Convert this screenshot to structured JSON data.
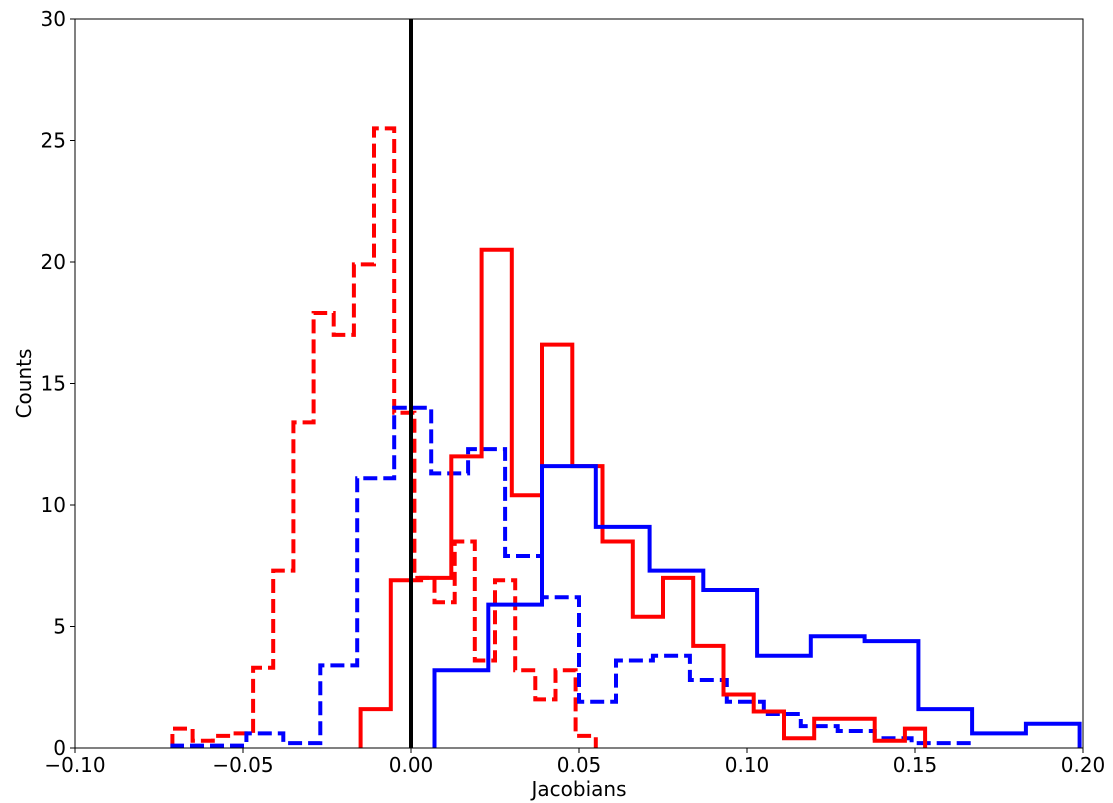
{
  "chart_data": {
    "type": "histogram",
    "xlabel": "Jacobians",
    "ylabel": "Counts",
    "xlim": [
      -0.1,
      0.2
    ],
    "ylim": [
      0,
      30
    ],
    "xticks": [
      -0.1,
      -0.05,
      0.0,
      0.05,
      0.1,
      0.15,
      0.2
    ],
    "xtick_labels": [
      "−0.10",
      "−0.05",
      "0.00",
      "0.05",
      "0.10",
      "0.15",
      "0.20"
    ],
    "yticks": [
      0,
      5,
      10,
      15,
      20,
      25,
      30
    ],
    "ytick_labels": [
      "0",
      "5",
      "10",
      "15",
      "20",
      "25",
      "30"
    ],
    "grid": false,
    "reference_line": {
      "x": 0.0,
      "color": "#000000"
    },
    "series": [
      {
        "color": "#ff0000",
        "style": "dashed",
        "edges": [
          -0.071,
          -0.065,
          -0.059,
          -0.053,
          -0.047,
          -0.041,
          -0.035,
          -0.029,
          -0.023,
          -0.017,
          -0.011,
          -0.005,
          0.001,
          0.007,
          0.013,
          0.019,
          0.025,
          0.031,
          0.037,
          0.043,
          0.049,
          0.055
        ],
        "counts": [
          0.8,
          0.3,
          0.5,
          0.6,
          3.3,
          7.3,
          13.4,
          17.9,
          17.0,
          19.9,
          25.5,
          13.8,
          7.0,
          6.0,
          8.5,
          3.6,
          6.9,
          3.2,
          2.0,
          3.2,
          0.5
        ]
      },
      {
        "color": "#0000ff",
        "style": "dashed",
        "edges": [
          -0.071,
          -0.06,
          -0.049,
          -0.038,
          -0.027,
          -0.016,
          -0.005,
          0.006,
          0.017,
          0.028,
          0.039,
          0.05,
          0.061,
          0.072,
          0.083,
          0.094,
          0.105,
          0.116,
          0.127,
          0.138,
          0.149,
          0.167
        ],
        "counts": [
          0.1,
          0.1,
          0.6,
          0.2,
          3.4,
          11.1,
          14.0,
          11.3,
          12.3,
          7.9,
          6.2,
          1.9,
          3.6,
          3.8,
          2.8,
          1.9,
          1.4,
          0.9,
          0.7,
          0.4,
          0.2
        ]
      },
      {
        "color": "#ff0000",
        "style": "solid",
        "edges": [
          -0.015,
          -0.006,
          0.003,
          0.012,
          0.021,
          0.03,
          0.039,
          0.048,
          0.057,
          0.066,
          0.075,
          0.084,
          0.093,
          0.102,
          0.111,
          0.12,
          0.129,
          0.138,
          0.147,
          0.153
        ],
        "counts": [
          1.6,
          6.9,
          7.0,
          12.0,
          20.5,
          10.4,
          16.6,
          11.6,
          8.5,
          5.4,
          7.0,
          4.2,
          2.2,
          1.5,
          0.4,
          1.2,
          1.2,
          0.3,
          0.8
        ]
      },
      {
        "color": "#0000ff",
        "style": "solid",
        "edges": [
          0.007,
          0.023,
          0.039,
          0.055,
          0.071,
          0.087,
          0.103,
          0.119,
          0.135,
          0.151,
          0.167,
          0.183,
          0.199
        ],
        "counts": [
          3.2,
          5.9,
          11.6,
          9.1,
          7.3,
          6.5,
          3.8,
          4.6,
          4.4,
          1.6,
          0.6,
          1.0
        ]
      }
    ]
  }
}
